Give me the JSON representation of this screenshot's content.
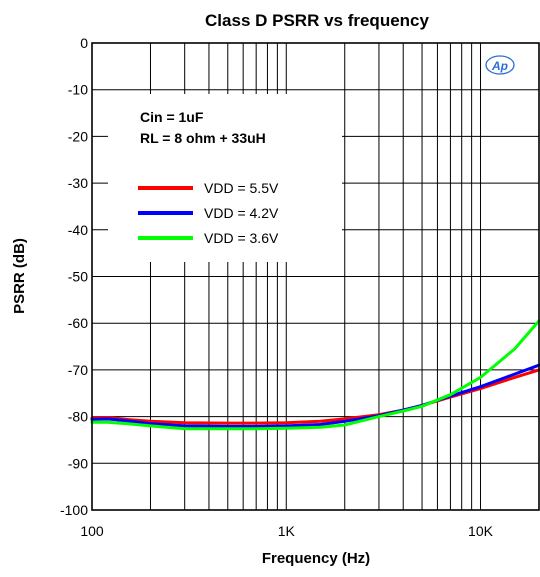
{
  "chart_data": {
    "type": "line",
    "title": "Class D PSRR vs frequency",
    "xlabel": "Frequency (Hz)",
    "ylabel": "PSRR (dB)",
    "xscale": "log",
    "xlim": [
      100,
      20000
    ],
    "ylim": [
      -100,
      0
    ],
    "x_ticks": [
      {
        "value": 100,
        "label": "100"
      },
      {
        "value": 1000,
        "label": "1K"
      },
      {
        "value": 10000,
        "label": "10K"
      }
    ],
    "y_ticks": [
      {
        "value": 0,
        "label": "0"
      },
      {
        "value": -10,
        "label": "-10"
      },
      {
        "value": -20,
        "label": "-20"
      },
      {
        "value": -30,
        "label": "-30"
      },
      {
        "value": -40,
        "label": "-40"
      },
      {
        "value": -50,
        "label": "-50"
      },
      {
        "value": -60,
        "label": "-60"
      },
      {
        "value": -70,
        "label": "-70"
      },
      {
        "value": -80,
        "label": "-80"
      },
      {
        "value": -90,
        "label": "-90"
      },
      {
        "value": -100,
        "label": "-100"
      }
    ],
    "grid": true,
    "legend_position": "top-left",
    "annotations": [
      "Cin = 1uF",
      "RL = 8 ohm + 33uH"
    ],
    "logo_text": "Ap",
    "series": [
      {
        "name": "VDD = 5.5V",
        "color": "#ff0000",
        "x": [
          100,
          120,
          150,
          200,
          300,
          500,
          700,
          1000,
          1500,
          2000,
          3000,
          4000,
          5000,
          7000,
          10000,
          15000,
          20000
        ],
        "y": [
          -80.3,
          -80.2,
          -80.6,
          -81.0,
          -81.3,
          -81.4,
          -81.4,
          -81.3,
          -81.0,
          -80.5,
          -79.6,
          -78.6,
          -77.6,
          -75.8,
          -74.0,
          -71.6,
          -70.0
        ]
      },
      {
        "name": "VDD = 4.2V",
        "color": "#0000ff",
        "x": [
          100,
          120,
          150,
          200,
          300,
          500,
          700,
          1000,
          1500,
          2000,
          3000,
          4000,
          5000,
          7000,
          10000,
          15000,
          20000
        ],
        "y": [
          -80.6,
          -80.5,
          -80.9,
          -81.5,
          -82.0,
          -82.1,
          -82.1,
          -82.0,
          -81.7,
          -81.0,
          -79.8,
          -78.6,
          -77.6,
          -75.6,
          -73.6,
          -70.9,
          -69.0
        ]
      },
      {
        "name": "VDD = 3.6V",
        "color": "#00ff00",
        "x": [
          100,
          120,
          150,
          200,
          300,
          500,
          700,
          1000,
          1500,
          2000,
          3000,
          4000,
          5000,
          7000,
          10000,
          15000,
          20000
        ],
        "y": [
          -81.2,
          -81.2,
          -81.5,
          -82.0,
          -82.6,
          -82.6,
          -82.6,
          -82.5,
          -82.3,
          -81.8,
          -80.0,
          -78.8,
          -77.8,
          -75.3,
          -71.6,
          -65.5,
          -59.5
        ]
      }
    ]
  }
}
